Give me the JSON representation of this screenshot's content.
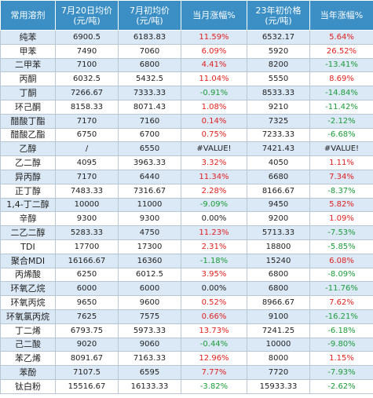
{
  "headers": [
    "常用溶剂",
    "7月20日均价\n(元/吨)",
    "7月初均价\n(元/吨)",
    "当月涨幅%",
    "23年初价格\n(元/吨)",
    "当年涨幅%"
  ],
  "rows": [
    {
      "name": "纯苯",
      "price_now": "6900.5",
      "price_month_start": "6183.83",
      "month_change": "11.59%",
      "month_dir": "pos",
      "price_year_start": "6532.17",
      "year_change": "5.64%",
      "year_dir": "pos"
    },
    {
      "name": "甲苯",
      "price_now": "7490",
      "price_month_start": "7060",
      "month_change": "6.09%",
      "month_dir": "pos",
      "price_year_start": "5920",
      "year_change": "26.52%",
      "year_dir": "pos"
    },
    {
      "name": "二甲苯",
      "price_now": "7100",
      "price_month_start": "6800",
      "month_change": "4.41%",
      "month_dir": "pos",
      "price_year_start": "8200",
      "year_change": "-13.41%",
      "year_dir": "neg"
    },
    {
      "name": "丙酮",
      "price_now": "6032.5",
      "price_month_start": "5432.5",
      "month_change": "11.04%",
      "month_dir": "pos",
      "price_year_start": "5550",
      "year_change": "8.69%",
      "year_dir": "pos"
    },
    {
      "name": "丁酮",
      "price_now": "7266.67",
      "price_month_start": "7333.33",
      "month_change": "-0.91%",
      "month_dir": "neg",
      "price_year_start": "8533.33",
      "year_change": "-14.84%",
      "year_dir": "neg"
    },
    {
      "name": "环己酮",
      "price_now": "8158.33",
      "price_month_start": "8071.43",
      "month_change": "1.08%",
      "month_dir": "pos",
      "price_year_start": "9210",
      "year_change": "-11.42%",
      "year_dir": "neg"
    },
    {
      "name": "醋酸丁酯",
      "price_now": "7170",
      "price_month_start": "7160",
      "month_change": "0.14%",
      "month_dir": "pos",
      "price_year_start": "7325",
      "year_change": "-2.12%",
      "year_dir": "neg"
    },
    {
      "name": "醋酸乙酯",
      "price_now": "6750",
      "price_month_start": "6700",
      "month_change": "0.75%",
      "month_dir": "pos",
      "price_year_start": "7233.33",
      "year_change": "-6.68%",
      "year_dir": "neg"
    },
    {
      "name": "乙醇",
      "price_now": "/",
      "price_month_start": "6550",
      "month_change": "#VALUE!",
      "month_dir": "err",
      "price_year_start": "7421.43",
      "year_change": "#VALUE!",
      "year_dir": "err"
    },
    {
      "name": "乙二醇",
      "price_now": "4095",
      "price_month_start": "3963.33",
      "month_change": "3.32%",
      "month_dir": "pos",
      "price_year_start": "4050",
      "year_change": "1.11%",
      "year_dir": "pos"
    },
    {
      "name": "异丙醇",
      "price_now": "7170",
      "price_month_start": "6440",
      "month_change": "11.34%",
      "month_dir": "pos",
      "price_year_start": "6680",
      "year_change": "7.34%",
      "year_dir": "pos"
    },
    {
      "name": "正丁醇",
      "price_now": "7483.33",
      "price_month_start": "7316.67",
      "month_change": "2.28%",
      "month_dir": "pos",
      "price_year_start": "8166.67",
      "year_change": "-8.37%",
      "year_dir": "neg"
    },
    {
      "name": "1,4-丁二醇",
      "price_now": "10000",
      "price_month_start": "11000",
      "month_change": "-9.09%",
      "month_dir": "neg",
      "price_year_start": "9450",
      "year_change": "5.82%",
      "year_dir": "pos"
    },
    {
      "name": "辛醇",
      "price_now": "9300",
      "price_month_start": "9300",
      "month_change": "0.00%",
      "month_dir": "zero",
      "price_year_start": "9200",
      "year_change": "1.09%",
      "year_dir": "pos"
    },
    {
      "name": "二乙二醇",
      "price_now": "5283.33",
      "price_month_start": "4750",
      "month_change": "11.23%",
      "month_dir": "pos",
      "price_year_start": "5713.33",
      "year_change": "-7.53%",
      "year_dir": "neg"
    },
    {
      "name": "TDI",
      "price_now": "17700",
      "price_month_start": "17300",
      "month_change": "2.31%",
      "month_dir": "pos",
      "price_year_start": "18800",
      "year_change": "-5.85%",
      "year_dir": "neg"
    },
    {
      "name": "聚合MDI",
      "price_now": "16166.67",
      "price_month_start": "16360",
      "month_change": "-1.18%",
      "month_dir": "neg",
      "price_year_start": "15240",
      "year_change": "6.08%",
      "year_dir": "pos"
    },
    {
      "name": "丙烯酸",
      "price_now": "6250",
      "price_month_start": "6012.5",
      "month_change": "3.95%",
      "month_dir": "pos",
      "price_year_start": "6800",
      "year_change": "-8.09%",
      "year_dir": "neg"
    },
    {
      "name": "环氧乙烷",
      "price_now": "6000",
      "price_month_start": "6000",
      "month_change": "0.00%",
      "month_dir": "zero",
      "price_year_start": "6800",
      "year_change": "-11.76%",
      "year_dir": "neg"
    },
    {
      "name": "环氧丙烷",
      "price_now": "9650",
      "price_month_start": "9600",
      "month_change": "0.52%",
      "month_dir": "pos",
      "price_year_start": "8966.67",
      "year_change": "7.62%",
      "year_dir": "pos"
    },
    {
      "name": "环氧氯丙烷",
      "price_now": "7625",
      "price_month_start": "7575",
      "month_change": "0.66%",
      "month_dir": "pos",
      "price_year_start": "9100",
      "year_change": "-16.21%",
      "year_dir": "neg"
    },
    {
      "name": "丁二烯",
      "price_now": "6793.75",
      "price_month_start": "5973.33",
      "month_change": "13.73%",
      "month_dir": "pos",
      "price_year_start": "7241.25",
      "year_change": "-6.18%",
      "year_dir": "neg"
    },
    {
      "name": "己二酸",
      "price_now": "9020",
      "price_month_start": "9060",
      "month_change": "-0.44%",
      "month_dir": "neg",
      "price_year_start": "10000",
      "year_change": "-9.80%",
      "year_dir": "neg"
    },
    {
      "name": "苯乙烯",
      "price_now": "8091.67",
      "price_month_start": "7163.33",
      "month_change": "12.96%",
      "month_dir": "pos",
      "price_year_start": "8000",
      "year_change": "1.15%",
      "year_dir": "pos"
    },
    {
      "name": "苯酚",
      "price_now": "7107.5",
      "price_month_start": "6595",
      "month_change": "7.77%",
      "month_dir": "pos",
      "price_year_start": "7720",
      "year_change": "-7.93%",
      "year_dir": "neg"
    },
    {
      "name": "钛白粉",
      "price_now": "15516.67",
      "price_month_start": "16133.33",
      "month_change": "-3.82%",
      "month_dir": "neg",
      "price_year_start": "15933.33",
      "year_change": "-2.62%",
      "year_dir": "neg"
    }
  ],
  "colors": {
    "header_bg": "#3b8fc4",
    "row_alt_bg": "#dbe8f6",
    "positive": "#e02020",
    "negative": "#1b9c3a"
  }
}
